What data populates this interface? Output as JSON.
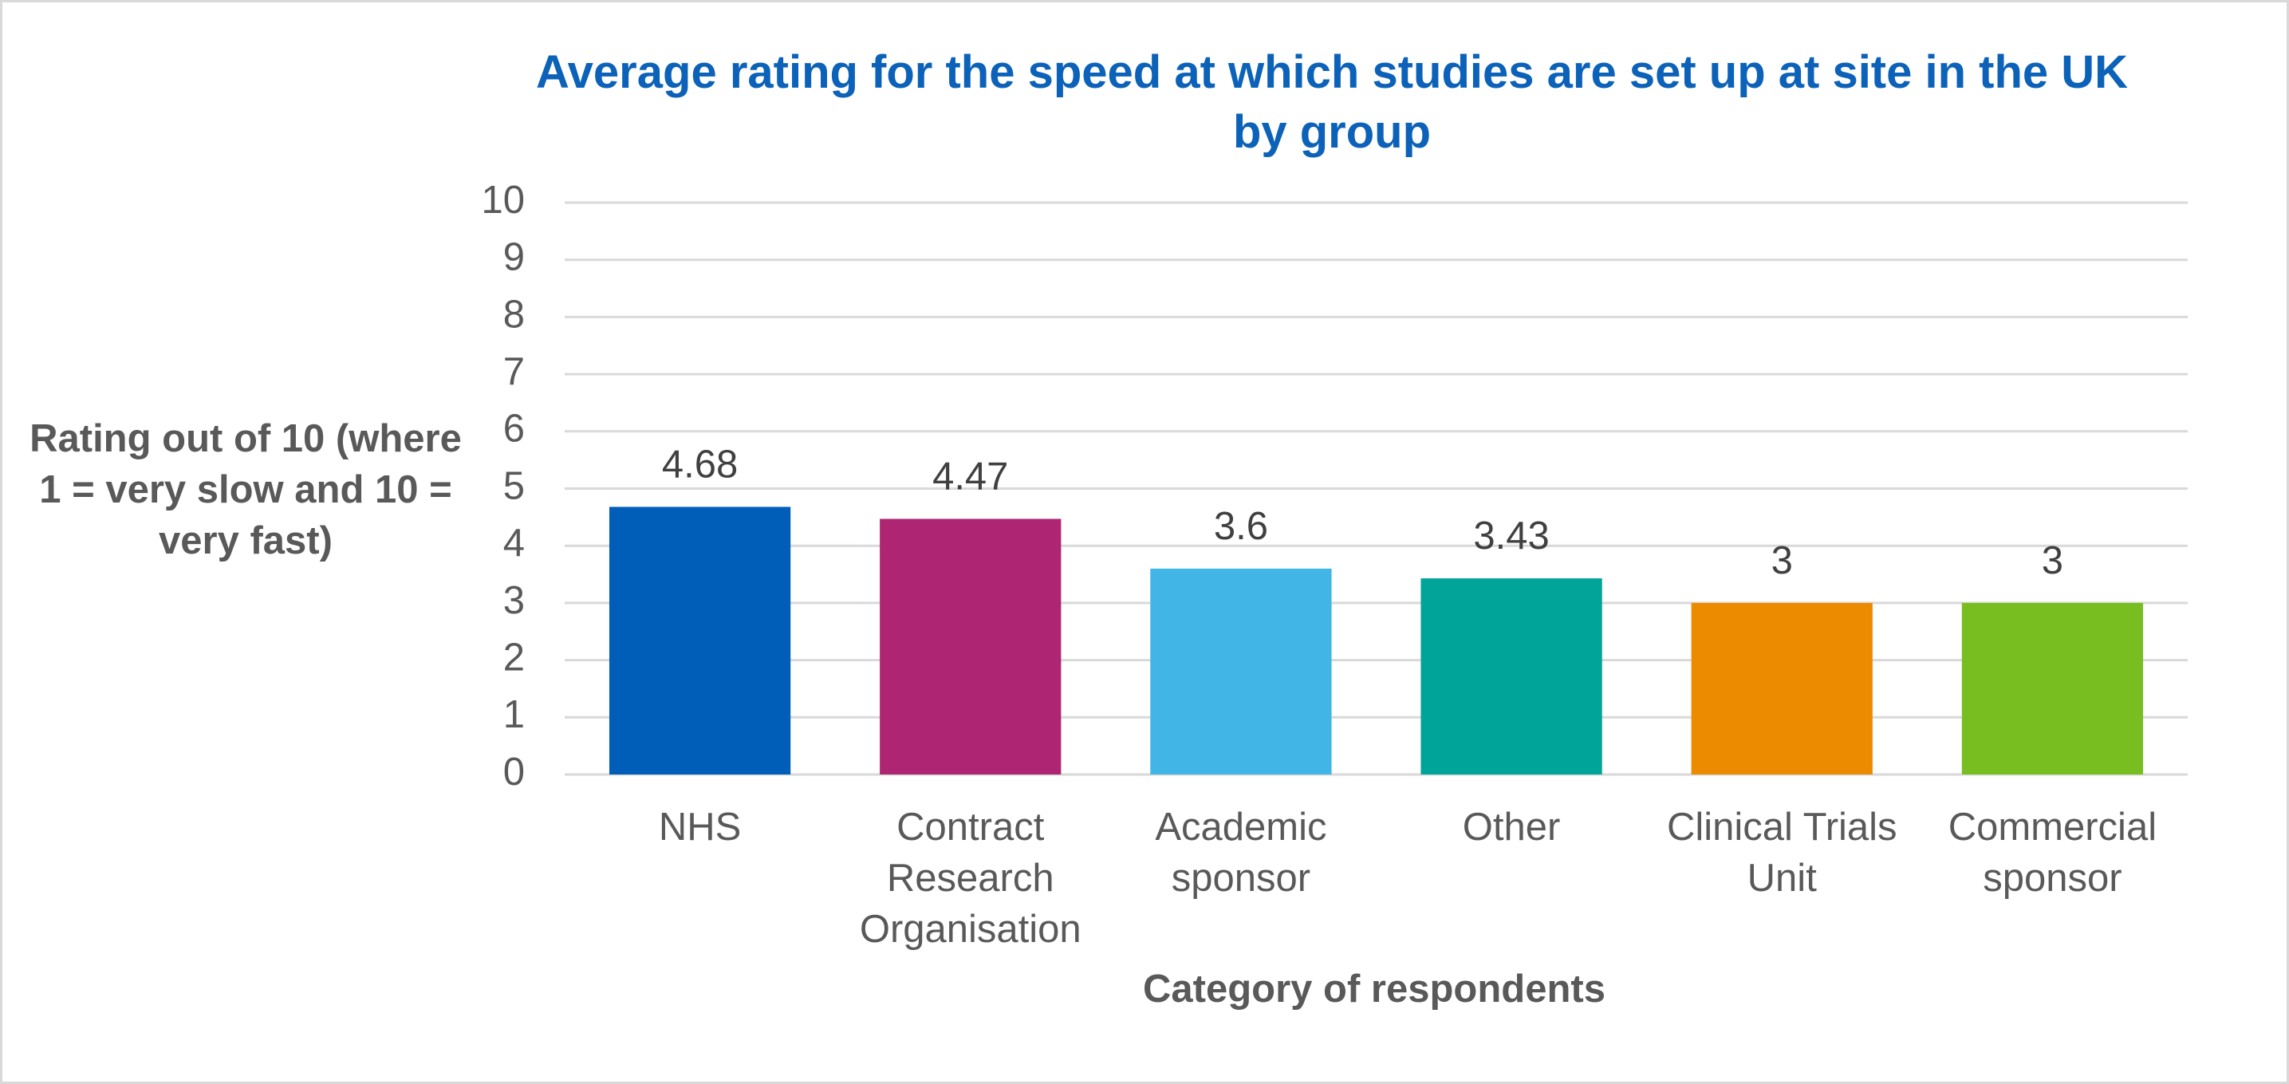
{
  "chart_data": {
    "type": "bar",
    "title": "Average rating for the speed at which studies are set up at site in the UK by group",
    "x_label": "Category of respondents",
    "y_label": "Rating out of 10 (where 1 = very slow and 10 = very fast)",
    "categories": [
      "NHS",
      "Contract Research Organisation",
      "Academic sponsor",
      "Other",
      "Clinical Trials Unit",
      "Commercial sponsor"
    ],
    "values": [
      4.68,
      4.47,
      3.6,
      3.43,
      3,
      3
    ],
    "colors": [
      "#005eb8",
      "#ae2573",
      "#41b6e6",
      "#00a499",
      "#ed8b00",
      "#78be20"
    ],
    "ylim": [
      0,
      10
    ],
    "yticks": [
      0,
      1,
      2,
      3,
      4,
      5,
      6,
      7,
      8,
      9,
      10
    ],
    "grid": true
  }
}
